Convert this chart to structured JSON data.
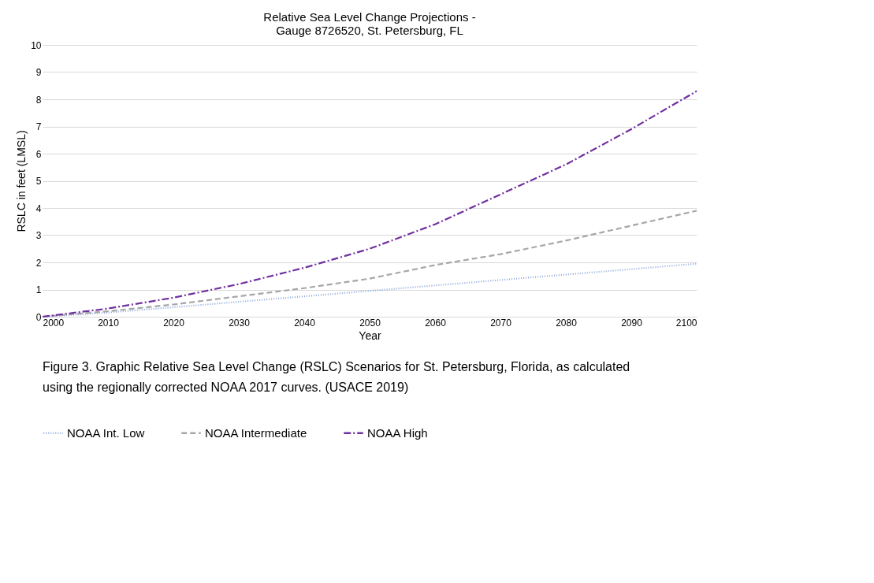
{
  "chart_data": {
    "type": "line",
    "title": "Relative Sea Level Change Projections - Gauge 8726520, St. Petersburg, FL",
    "xlabel": "Year",
    "ylabel": "RSLC in feet (LMSL)",
    "x": [
      2000,
      2010,
      2020,
      2030,
      2040,
      2050,
      2060,
      2070,
      2080,
      2090,
      2100
    ],
    "series": [
      {
        "name": "NOAA Int. Low",
        "color": "#8faadc",
        "line_style": "dotted",
        "values": [
          0,
          0.15,
          0.35,
          0.55,
          0.75,
          0.95,
          1.15,
          1.35,
          1.55,
          1.75,
          1.95
        ]
      },
      {
        "name": "NOAA Intermediate",
        "color": "#a6a6a6",
        "line_style": "dashed",
        "values": [
          0,
          0.2,
          0.45,
          0.75,
          1.05,
          1.4,
          1.9,
          2.3,
          2.8,
          3.35,
          3.9
        ]
      },
      {
        "name": "NOAA High",
        "color": "#7030a0",
        "line_style": "dashdot",
        "values": [
          0,
          0.3,
          0.7,
          1.2,
          1.8,
          2.5,
          3.4,
          4.5,
          5.6,
          6.9,
          8.3
        ]
      }
    ],
    "xlim": [
      2000,
      2100
    ],
    "xticks": [
      2000,
      2010,
      2020,
      2030,
      2040,
      2050,
      2060,
      2070,
      2080,
      2090,
      2100
    ],
    "ylim": [
      0,
      10
    ],
    "yticks": [
      0,
      1,
      2,
      3,
      4,
      5,
      6,
      7,
      8,
      9,
      10
    ],
    "grid": "y",
    "legend": "bottom",
    "annotations": [
      "Figure 3. Graphic Relative Sea Level Change (RSLC) Scenarios for St. Petersburg, Florida, as calculated using the regionally corrected NOAA 2017 curves. (USACE 2019)"
    ]
  }
}
